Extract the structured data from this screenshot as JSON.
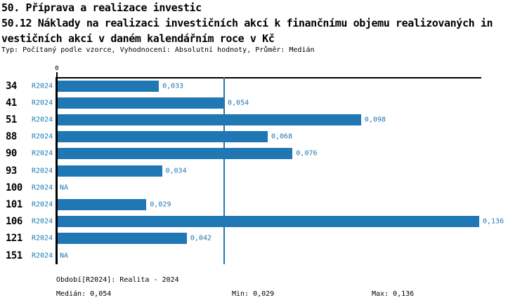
{
  "accent_color": "#1f77b4",
  "header": {
    "title_line1": "50. Příprava a realizace investic",
    "title_line2": "50.12 Náklady na realizaci investičních akcí k finančnímu objemu realizovaných in",
    "title_line3": "vestičních akcí v daném kalendářním roce v Kč",
    "meta": "Typ: Počítaný podle vzorce, Vyhodnocení: Absolutní hodnoty, Průměr: Medián"
  },
  "chart_data": {
    "type": "bar",
    "orientation": "horizontal",
    "categories": [
      "34",
      "41",
      "51",
      "88",
      "90",
      "93",
      "100",
      "101",
      "106",
      "121",
      "151"
    ],
    "series": [
      {
        "name": "R2024",
        "values": [
          0.033,
          0.054,
          0.098,
          0.068,
          0.076,
          0.034,
          null,
          0.029,
          0.136,
          0.042,
          null
        ],
        "labels": [
          "0,033",
          "0,054",
          "0,098",
          "0,068",
          "0,076",
          "0,034",
          "NA",
          "0,029",
          "0,136",
          "0,042",
          "NA"
        ]
      }
    ],
    "na_text": "NA",
    "zero_tick_label": "0",
    "xlim": [
      0,
      0.1367
    ],
    "median_value": 0.054,
    "min_value": 0.029,
    "max_value": 0.136,
    "bar_color": "#1f77b4",
    "grid": false,
    "legend": false
  },
  "footer": {
    "period_info": "Období[R2024]: Realita - 2024",
    "median_label": "Medián: 0,054",
    "min_label": "Min: 0,029",
    "max_label": "Max: 0,136"
  }
}
